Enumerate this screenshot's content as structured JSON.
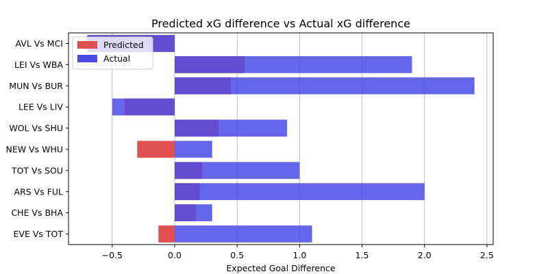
{
  "chart_data": {
    "type": "bar",
    "orientation": "horizontal",
    "title": "Predicted xG difference vs Actual xG difference",
    "xlabel": "Expected Goal Difference",
    "ylabel": "",
    "xlim": [
      -0.85,
      2.55
    ],
    "xticks": [
      -0.5,
      0.0,
      0.5,
      1.0,
      1.5,
      2.0,
      2.5
    ],
    "xtick_labels": [
      "−0.5",
      "0.0",
      "0.5",
      "1.0",
      "1.5",
      "2.0",
      "2.5"
    ],
    "grid": "vertical",
    "legend_position": "top-left",
    "categories": [
      "AVL Vs MCI",
      "LEI Vs WBA",
      "MUN Vs BUR",
      "LEE Vs LIV",
      "WOL Vs SHU",
      "NEW Vs WHU",
      "TOT Vs SOU",
      "ARS Vs FUL",
      "CHE Vs BHA",
      "EVE Vs TOT"
    ],
    "series": [
      {
        "name": "Predicted",
        "color": "#e05050",
        "values": [
          -0.7,
          0.56,
          0.45,
          -0.4,
          0.35,
          -0.3,
          0.22,
          0.2,
          0.17,
          -0.13
        ]
      },
      {
        "name": "Actual",
        "color": "#4b4be6",
        "values": [
          -0.7,
          1.9,
          2.4,
          -0.5,
          0.9,
          0.3,
          1.0,
          2.0,
          0.3,
          1.1
        ]
      }
    ],
    "overlap_color": "#4f2fbf"
  }
}
